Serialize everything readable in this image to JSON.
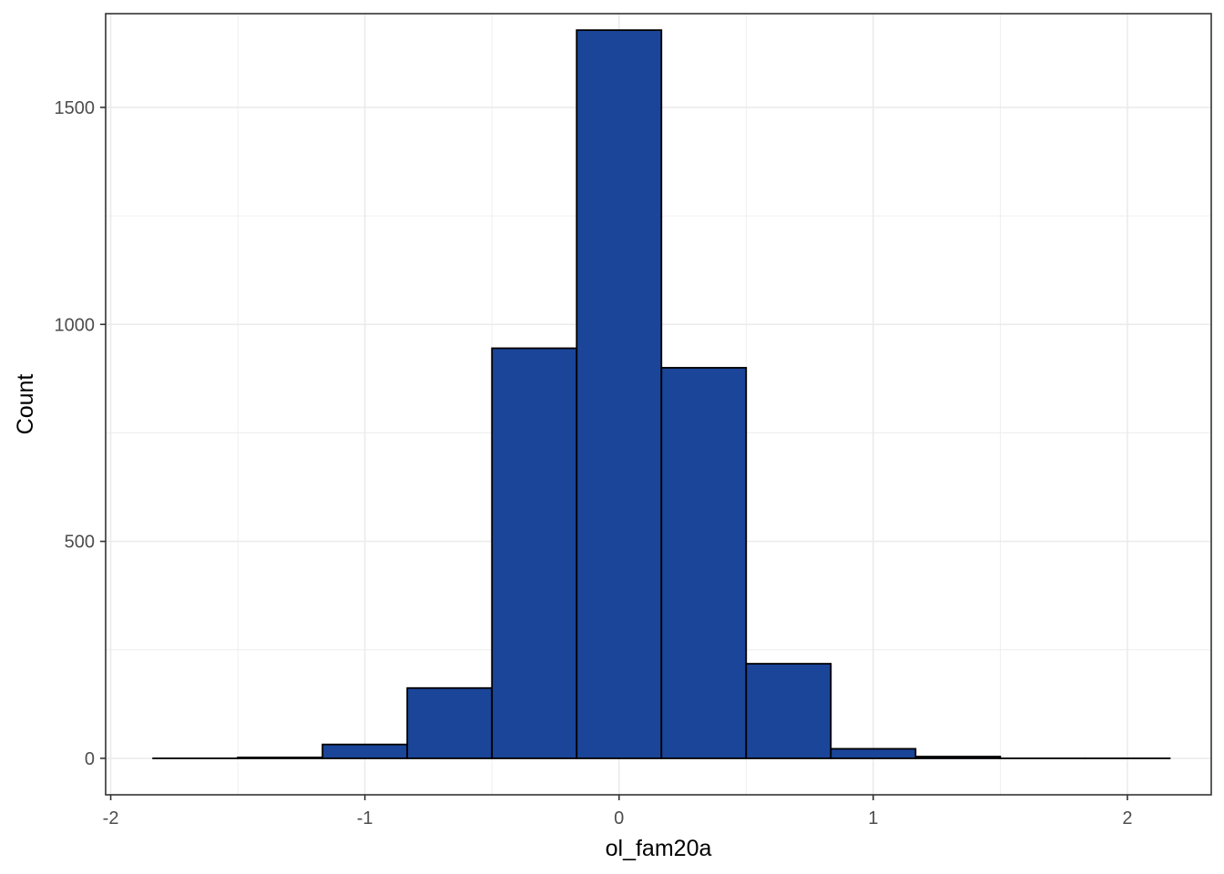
{
  "chart_data": {
    "type": "bar",
    "subtype": "histogram",
    "xlabel": "ol_fam20a",
    "ylabel": "Count",
    "xlim": [
      -2.02,
      2.33
    ],
    "ylim": [
      -84,
      1716
    ],
    "x_ticks": [
      -2,
      -1,
      0,
      1,
      2
    ],
    "x_tick_labels": [
      "-2",
      "-1",
      "0",
      "1",
      "2"
    ],
    "y_ticks": [
      0,
      500,
      1000,
      1500
    ],
    "y_tick_labels": [
      "0",
      "500",
      "1000",
      "1500"
    ],
    "bin_width": 0.3333,
    "bins": [
      {
        "x0": -1.8333,
        "x1": -1.5,
        "count": 0
      },
      {
        "x0": -1.5,
        "x1": -1.1667,
        "count": 2
      },
      {
        "x0": -1.1667,
        "x1": -0.8333,
        "count": 32
      },
      {
        "x0": -0.8333,
        "x1": -0.5,
        "count": 162
      },
      {
        "x0": -0.5,
        "x1": -0.1667,
        "count": 945
      },
      {
        "x0": -0.1667,
        "x1": 0.1667,
        "count": 1678
      },
      {
        "x0": 0.1667,
        "x1": 0.5,
        "count": 900
      },
      {
        "x0": 0.5,
        "x1": 0.8333,
        "count": 218
      },
      {
        "x0": 0.8333,
        "x1": 1.1667,
        "count": 22
      },
      {
        "x0": 1.1667,
        "x1": 1.5,
        "count": 4
      },
      {
        "x0": 1.5,
        "x1": 1.8333,
        "count": 0
      },
      {
        "x0": 1.8333,
        "x1": 2.1667,
        "count": 0
      }
    ],
    "fill_color": "#1a4599",
    "outline_color": "#000000",
    "grid": true,
    "grid_color": "#ebebeb",
    "panel_border_color": "#333333",
    "legend": "none"
  }
}
